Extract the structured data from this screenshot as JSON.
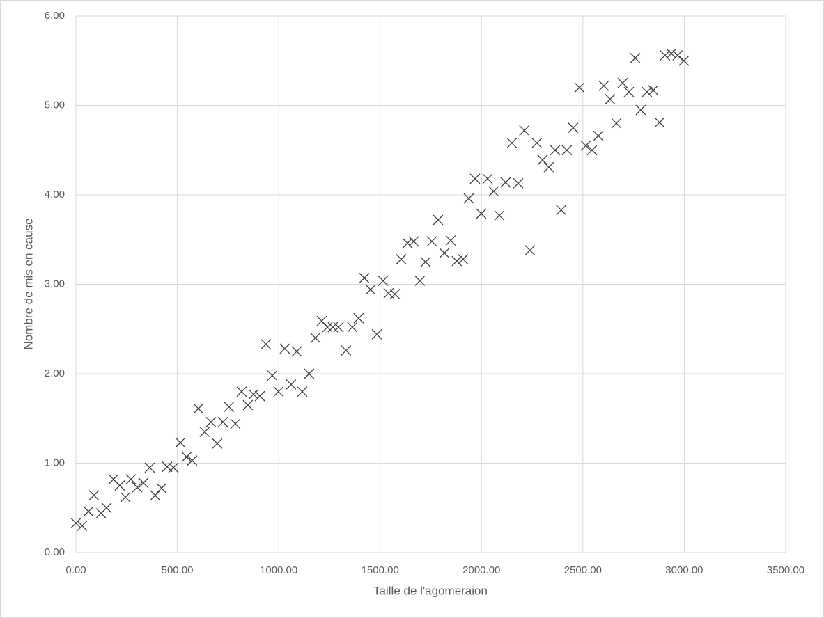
{
  "chart_data": {
    "type": "scatter",
    "x_label": "Taille de l'agomeraion",
    "y_label": "Nombre de mis en cause",
    "grid": true,
    "color": "#404040",
    "xlim": [
      0,
      3500
    ],
    "ylim": [
      0,
      6
    ],
    "xticks": [
      {
        "value": 0,
        "label": "0.00"
      },
      {
        "value": 500,
        "label": "500.00"
      },
      {
        "value": 1000,
        "label": "1000.00"
      },
      {
        "value": 1500,
        "label": "1500.00"
      },
      {
        "value": 2000,
        "label": "2000.00"
      },
      {
        "value": 2500,
        "label": "2500.00"
      },
      {
        "value": 3000,
        "label": "3000.00"
      },
      {
        "value": 3500,
        "label": "3500.00"
      }
    ],
    "yticks": [
      {
        "value": 0,
        "label": "0.00"
      },
      {
        "value": 1,
        "label": "1.00"
      },
      {
        "value": 2,
        "label": "2.00"
      },
      {
        "value": 3,
        "label": "3.00"
      },
      {
        "value": 4,
        "label": "4.00"
      },
      {
        "value": 5,
        "label": "5.00"
      },
      {
        "value": 6,
        "label": "6.00"
      }
    ],
    "x": [
      0,
      31,
      62,
      89,
      124,
      151,
      185,
      216,
      244,
      271,
      302,
      333,
      364,
      391,
      422,
      450,
      481,
      515,
      546,
      573,
      604,
      635,
      666,
      697,
      725,
      755,
      786,
      817,
      848,
      876,
      907,
      937,
      968,
      999,
      1030,
      1061,
      1089,
      1116,
      1150,
      1181,
      1212,
      1240,
      1267,
      1295,
      1332,
      1363,
      1394,
      1422,
      1453,
      1484,
      1515,
      1542,
      1573,
      1604,
      1635,
      1666,
      1696,
      1724,
      1755,
      1786,
      1817,
      1848,
      1878,
      1909,
      1937,
      1968,
      1999,
      2030,
      2060,
      2088,
      2119,
      2150,
      2181,
      2211,
      2239,
      2273,
      2301,
      2332,
      2363,
      2393,
      2421,
      2452,
      2483,
      2514,
      2545,
      2576,
      2603,
      2634,
      2665,
      2696,
      2727,
      2758,
      2785,
      2816,
      2847,
      2878,
      2905,
      2936,
      2967,
      2998
    ],
    "y": [
      0.33,
      0.3,
      0.46,
      0.64,
      0.44,
      0.5,
      0.82,
      0.75,
      0.62,
      0.82,
      0.73,
      0.78,
      0.95,
      0.64,
      0.72,
      0.96,
      0.95,
      1.23,
      1.07,
      1.03,
      1.61,
      1.35,
      1.46,
      1.22,
      1.46,
      1.63,
      1.44,
      1.8,
      1.65,
      1.77,
      1.75,
      2.33,
      1.98,
      1.8,
      2.28,
      1.88,
      2.25,
      1.8,
      2.0,
      2.4,
      2.59,
      2.52,
      2.52,
      2.52,
      2.26,
      2.52,
      2.62,
      3.07,
      2.94,
      2.44,
      3.04,
      2.9,
      2.89,
      3.28,
      3.46,
      3.48,
      3.04,
      3.25,
      3.48,
      3.72,
      3.35,
      3.49,
      3.26,
      3.28,
      3.96,
      4.18,
      3.79,
      4.18,
      4.04,
      3.77,
      4.14,
      4.58,
      4.13,
      4.72,
      3.38,
      4.58,
      4.39,
      4.31,
      4.5,
      3.83,
      4.5,
      4.75,
      5.2,
      4.55,
      4.5,
      4.66,
      5.22,
      5.07,
      4.8,
      5.25,
      5.15,
      5.53,
      4.95,
      5.15,
      5.17,
      4.81,
      5.56,
      5.58,
      5.56,
      5.5
    ]
  }
}
